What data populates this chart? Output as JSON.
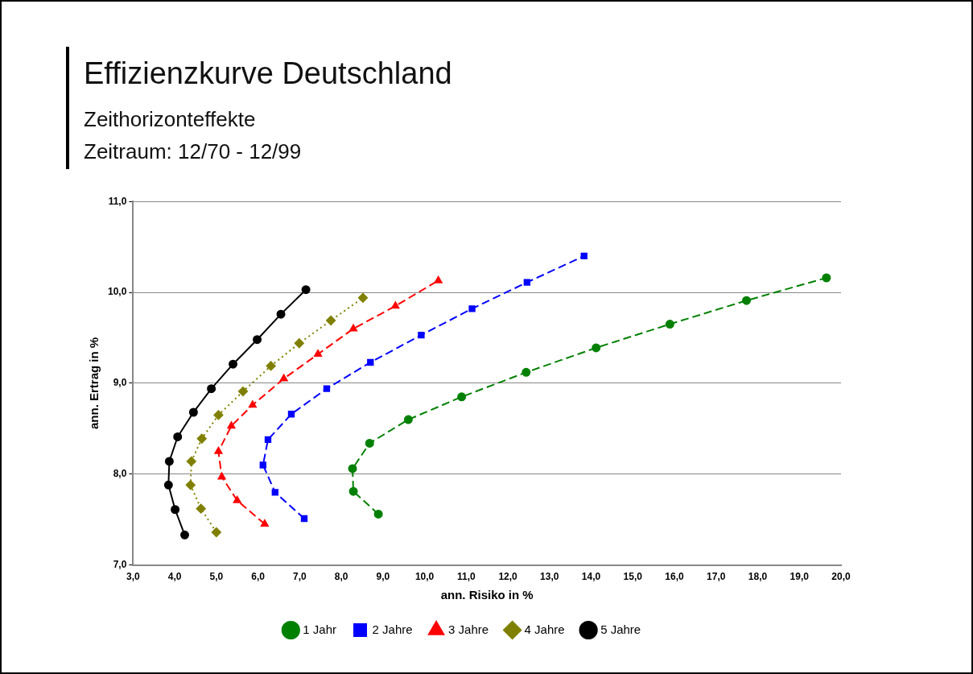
{
  "chart_data": {
    "type": "line",
    "title": "Effizienzkurve Deutschland",
    "subtitle": "Zeithorizonteffekte\nZeitraum: 12/70 - 12/99",
    "xlabel": "ann. Risiko in %",
    "ylabel": "ann. Ertrag in %",
    "series": [
      {
        "name": "1 Jahr",
        "color": "#008000",
        "marker": "circle",
        "line_style": "dashed",
        "x": [
          8.89,
          8.29,
          8.27,
          8.68,
          9.61,
          10.89,
          12.44,
          14.12,
          15.89,
          17.73,
          19.65
        ],
        "values": [
          7.56,
          7.81,
          8.06,
          8.34,
          8.6,
          8.85,
          9.12,
          9.39,
          9.65,
          9.91,
          10.16
        ]
      },
      {
        "name": "2 Jahre",
        "color": "#0000ff",
        "marker": "square",
        "line_style": "dashed",
        "x": [
          7.11,
          6.41,
          6.12,
          6.24,
          6.8,
          7.65,
          8.7,
          9.92,
          11.14,
          12.46,
          13.83
        ],
        "values": [
          7.51,
          7.8,
          8.1,
          8.38,
          8.66,
          8.94,
          9.23,
          9.53,
          9.82,
          10.11,
          10.4
        ]
      },
      {
        "name": "3 Jahre",
        "color": "#ff0000",
        "marker": "triangle",
        "line_style": "dashed",
        "x": [
          6.16,
          5.5,
          5.13,
          5.05,
          5.36,
          5.87,
          6.62,
          7.44,
          8.29,
          9.3,
          10.33
        ],
        "values": [
          7.45,
          7.71,
          7.97,
          8.25,
          8.53,
          8.76,
          9.05,
          9.32,
          9.6,
          9.85,
          10.13
        ]
      },
      {
        "name": "4 Jahre",
        "color": "#808000",
        "marker": "diamond",
        "line_style": "dotted",
        "x": [
          5.0,
          4.63,
          4.38,
          4.4,
          4.65,
          5.05,
          5.64,
          6.31,
          6.99,
          7.75,
          8.52
        ],
        "values": [
          7.36,
          7.62,
          7.88,
          8.14,
          8.39,
          8.65,
          8.91,
          9.19,
          9.44,
          9.69,
          9.94
        ]
      },
      {
        "name": "5 Jahre",
        "color": "#000000",
        "marker": "circle",
        "line_style": "solid",
        "x": [
          4.24,
          4.01,
          3.85,
          3.87,
          4.07,
          4.45,
          4.88,
          5.4,
          5.98,
          6.55,
          7.15
        ],
        "values": [
          7.33,
          7.61,
          7.88,
          8.14,
          8.41,
          8.68,
          8.94,
          9.21,
          9.48,
          9.76,
          10.03
        ]
      }
    ],
    "xlim": [
      3,
      20
    ],
    "xticks": [
      {
        "value": 3,
        "label": "3,0"
      },
      {
        "value": 4,
        "label": "4,0"
      },
      {
        "value": 5,
        "label": "5,0"
      },
      {
        "value": 6,
        "label": "6,0"
      },
      {
        "value": 7,
        "label": "7,0"
      },
      {
        "value": 8,
        "label": "8,0"
      },
      {
        "value": 9,
        "label": "9,0"
      },
      {
        "value": 10,
        "label": "10,0"
      },
      {
        "value": 11,
        "label": "11,0"
      },
      {
        "value": 12,
        "label": "12,0"
      },
      {
        "value": 13,
        "label": "13,0"
      },
      {
        "value": 14,
        "label": "14,0"
      },
      {
        "value": 15,
        "label": "15,0"
      },
      {
        "value": 16,
        "label": "16,0"
      },
      {
        "value": 17,
        "label": "17,0"
      },
      {
        "value": 18,
        "label": "18,0"
      },
      {
        "value": 19,
        "label": "19,0"
      },
      {
        "value": 20,
        "label": "20,0"
      }
    ],
    "ylim": [
      7,
      11
    ],
    "yticks": [
      {
        "value": 7,
        "label": "7,0"
      },
      {
        "value": 8,
        "label": "8,0"
      },
      {
        "value": 9,
        "label": "9,0"
      },
      {
        "value": 10,
        "label": "10,0"
      },
      {
        "value": 11,
        "label": "11,0"
      }
    ],
    "grid": "y",
    "legend": "bottom"
  }
}
